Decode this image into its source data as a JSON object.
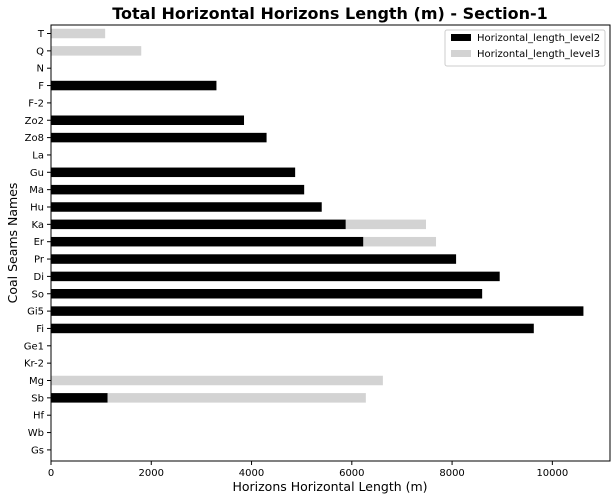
{
  "chart_data": {
    "type": "bar",
    "orientation": "horizontal",
    "stacked": true,
    "title": "Total Horizontal Horizons Length (m) - Section-1",
    "xlabel": "Horizons Horizontal Length (m)",
    "ylabel": "Coal Seams Names",
    "xlim": [
      0,
      11150
    ],
    "xticks": [
      0,
      2000,
      4000,
      6000,
      8000,
      10000
    ],
    "grid": false,
    "legend_position": "top-right",
    "categories": [
      "T",
      "Q",
      "N",
      "F",
      "F-2",
      "Zo2",
      "Zo8",
      "La",
      "Gu",
      "Ma",
      "Hu",
      "Ka",
      "Er",
      "Pr",
      "Di",
      "So",
      "Gi5",
      "Fi",
      "Ge1",
      "Kr-2",
      "Mg",
      "Sb",
      "Hf",
      "Wb",
      "Gs"
    ],
    "series": [
      {
        "name": "Horizontal_length_level2",
        "color": "#000000",
        "values": [
          0,
          0,
          0,
          3300,
          0,
          3850,
          4300,
          0,
          4870,
          5050,
          5400,
          5880,
          6230,
          8080,
          8950,
          8600,
          10620,
          9630,
          0,
          0,
          0,
          1130,
          0,
          0,
          0
        ]
      },
      {
        "name": "Horizontal_length_level3",
        "color": "#d3d3d3",
        "values": [
          1080,
          1800,
          0,
          0,
          0,
          0,
          0,
          0,
          0,
          0,
          0,
          1600,
          1450,
          0,
          0,
          0,
          0,
          0,
          0,
          0,
          6620,
          5150,
          0,
          0,
          0
        ]
      }
    ]
  }
}
